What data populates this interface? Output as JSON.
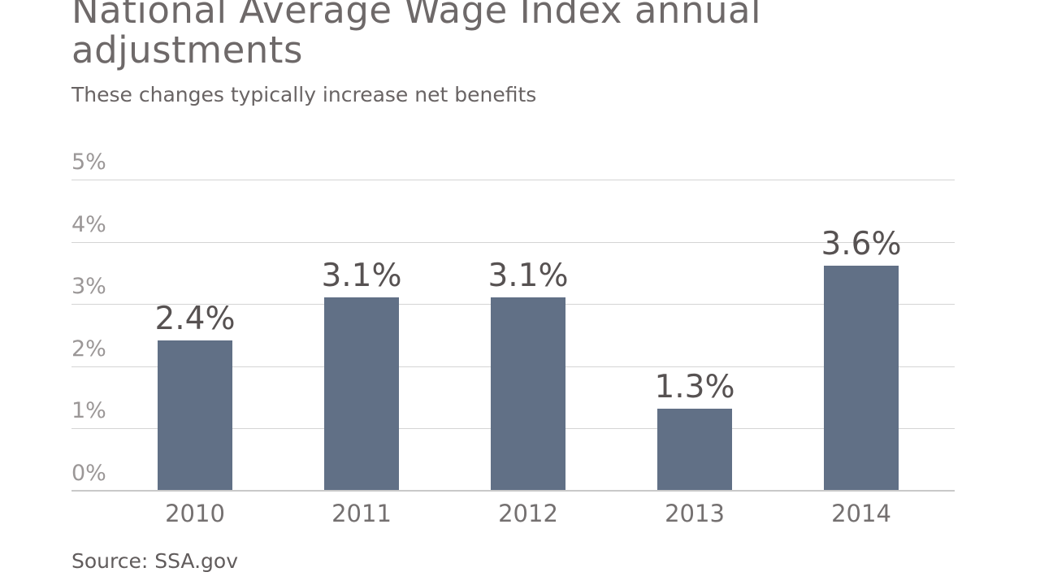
{
  "header": {
    "title": "National Average Wage Index annual adjustments",
    "subtitle": "These changes typically increase net benefits"
  },
  "footer": {
    "source": "Source: SSA.gov"
  },
  "colors": {
    "bar": "#617086",
    "title_text": "#6e6969",
    "subtitle_text": "#696464",
    "y_axis_label": "#9b9797",
    "x_axis_label": "#747070",
    "data_label": "#575252",
    "gridline": "#d4d4d4",
    "axis_line": "#c9c9c9",
    "background": "#ffffff"
  },
  "chart_data": {
    "type": "bar",
    "title": "National Average Wage Index annual adjustments",
    "subtitle": "These changes typically increase net benefits",
    "categories": [
      "2010",
      "2011",
      "2012",
      "2013",
      "2014"
    ],
    "values": [
      2.4,
      3.1,
      3.1,
      1.3,
      3.6
    ],
    "data_labels": [
      "2.4%",
      "3.1%",
      "3.1%",
      "1.3%",
      "3.6%"
    ],
    "xlabel": "",
    "ylabel": "",
    "ylim": [
      0,
      5
    ],
    "yticks": [
      "0%",
      "1%",
      "2%",
      "3%",
      "4%",
      "5%"
    ],
    "grid": true,
    "legend": false,
    "source": "Source: SSA.gov"
  }
}
